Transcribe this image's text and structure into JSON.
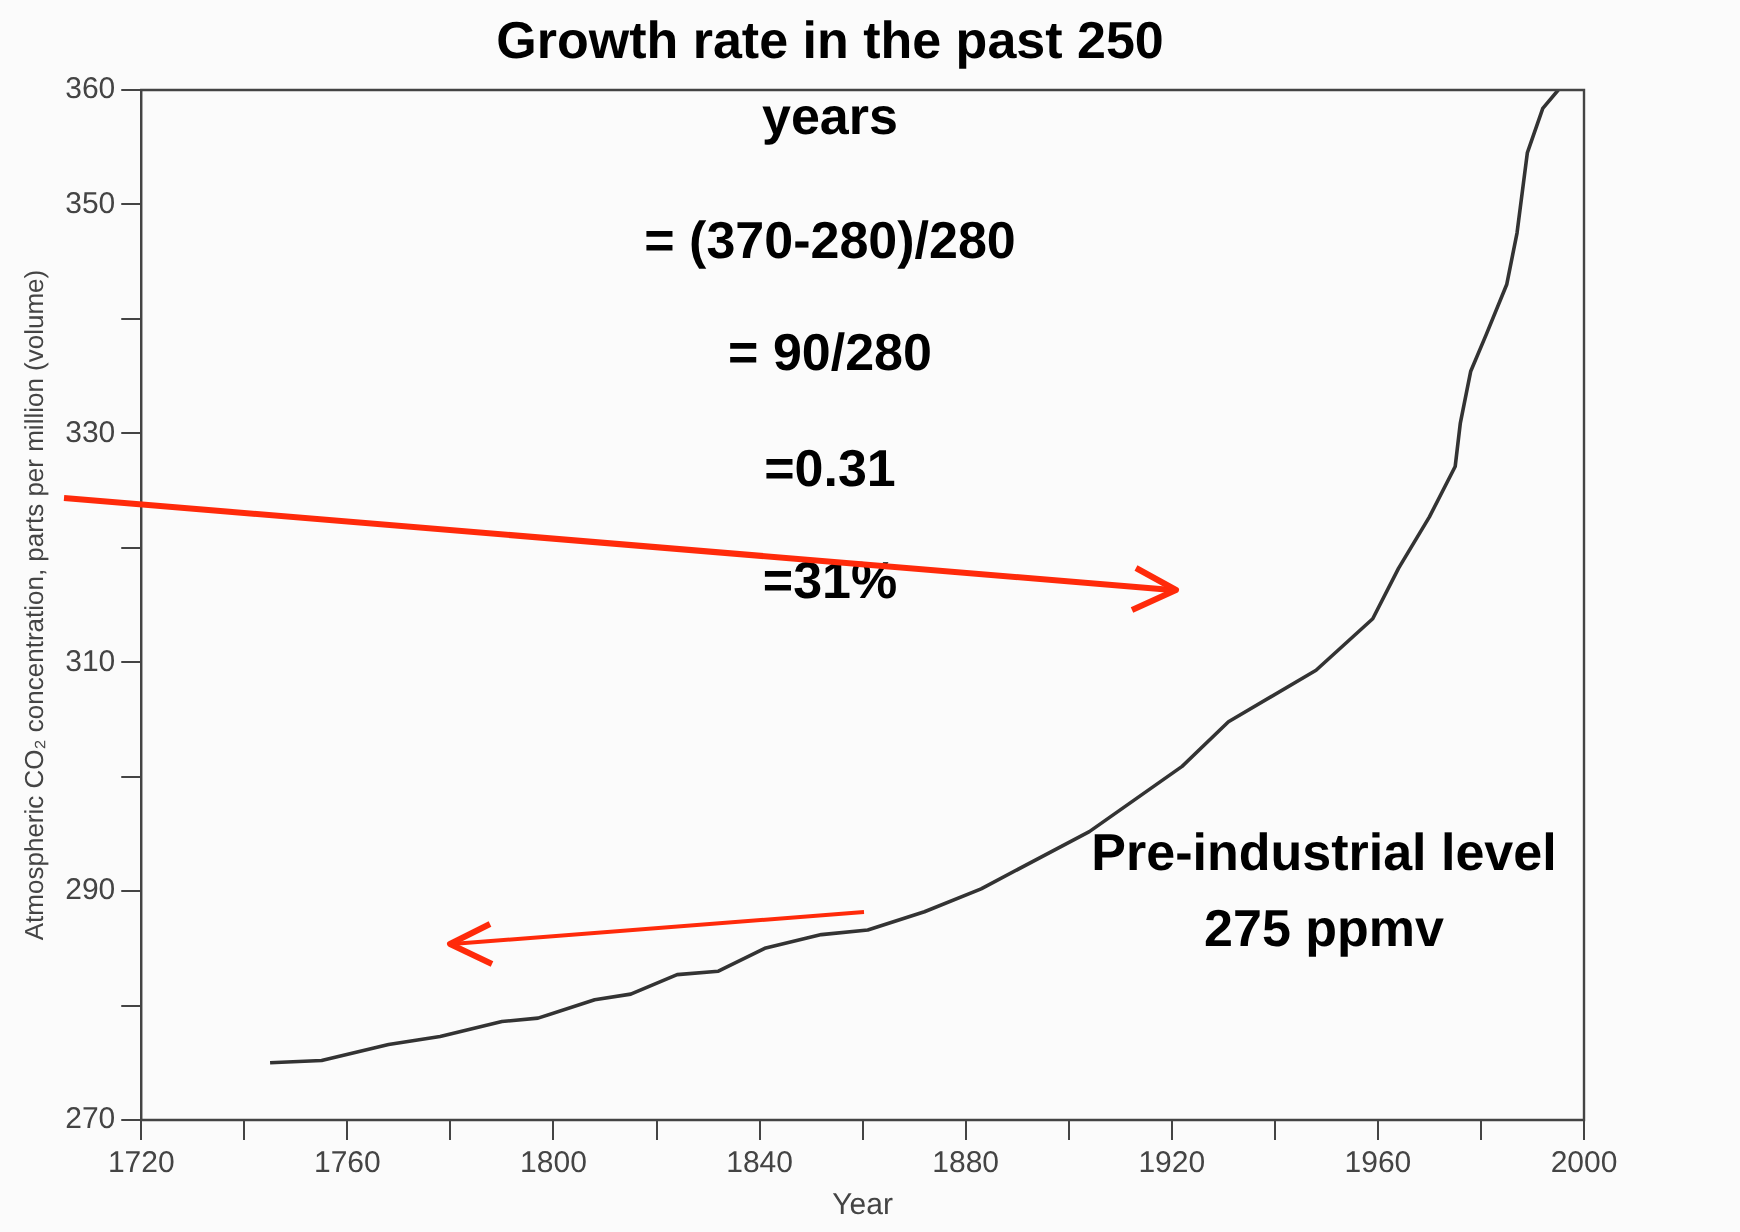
{
  "chart_data": {
    "type": "line",
    "xlabel": "Year",
    "ylabel": "Atmospheric CO₂ concentration, parts per million (volume)",
    "annotations": [
      "Growth rate in the past 250 years",
      "= (370-280)/280",
      "= 90/280",
      "=0.31",
      "=31%",
      "Pre-industrial level\n275 ppmv"
    ],
    "xlim": [
      1720,
      2000
    ],
    "xticks": [
      1720,
      {
        "value": 1740,
        "label": null
      },
      1760,
      {
        "value": 1780,
        "label": null
      },
      1800,
      {
        "value": 1820,
        "label": null
      },
      1840,
      {
        "value": 1860,
        "label": null
      },
      1880,
      {
        "value": 1900,
        "label": null
      },
      1920,
      {
        "value": 1940,
        "label": null
      },
      1960,
      {
        "value": 1980,
        "label": null
      },
      2000
    ],
    "ylim": [
      270,
      360
    ],
    "yticks": [
      270,
      {
        "value": 280,
        "label": null
      },
      290,
      {
        "value": 300,
        "label": null
      },
      310,
      {
        "value": 320,
        "label": null
      },
      330,
      {
        "value": 340,
        "label": null
      },
      350,
      360
    ],
    "grid": false,
    "legend": false,
    "marker": "none",
    "line_style": "solid",
    "series": [
      {
        "color": "#333333",
        "x": [
          1745,
          1755,
          1768,
          1778,
          1790,
          1797,
          1808,
          1815,
          1824,
          1832,
          1841,
          1852,
          1861,
          1872,
          1883,
          1904,
          1922,
          1931,
          1948,
          1959,
          1964,
          1970,
          1975,
          1976,
          1978,
          1981,
          1985,
          1987,
          1989,
          1992,
          1995
        ],
        "values": [
          275.0,
          275.2,
          276.6,
          277.3,
          278.6,
          278.9,
          280.5,
          281.0,
          282.7,
          283.0,
          285.0,
          286.2,
          286.6,
          288.2,
          290.2,
          295.2,
          300.9,
          304.8,
          309.3,
          313.8,
          318.2,
          322.7,
          327.1,
          330.9,
          335.4,
          338.6,
          343.0,
          347.5,
          354.5,
          358.4,
          360.0
        ]
      }
    ]
  }
}
